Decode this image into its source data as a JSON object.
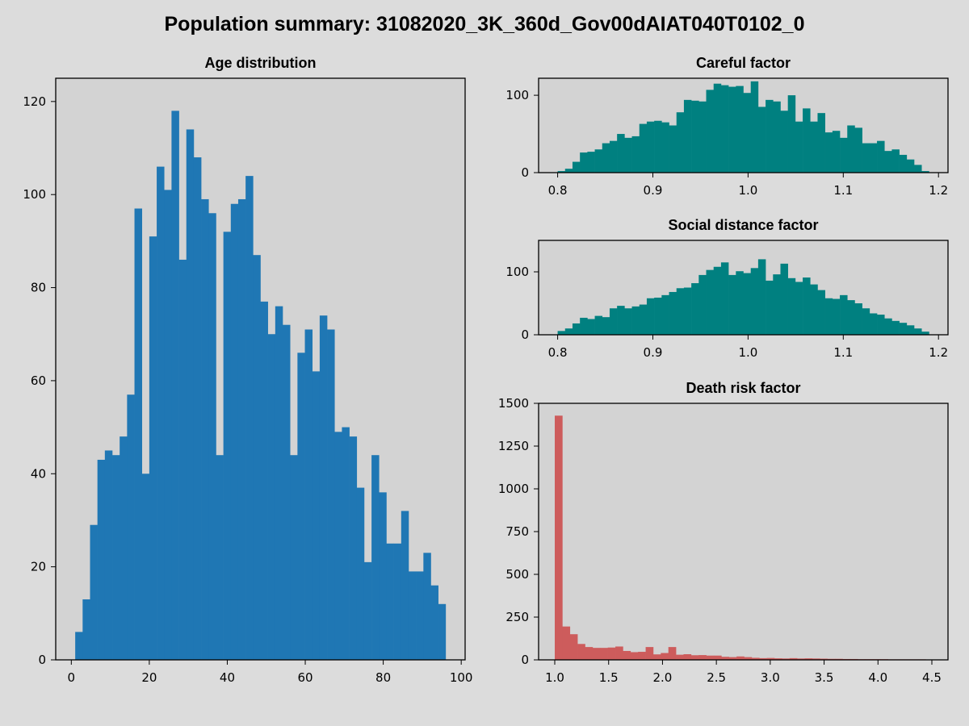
{
  "suptitle": "Population summary: 31082020_3K_360d_Gov00dAIAT040T0102_0",
  "colors": {
    "figure_bg": "#dcdcdc",
    "axes_bg": "#d3d3d3",
    "age": "#1f77b4",
    "careful": "#008080",
    "social": "#008080",
    "death": "#cd5c5c"
  },
  "chart_data": [
    {
      "id": "age",
      "type": "bar",
      "title": "Age distribution",
      "xlim": [
        -4,
        101
      ],
      "ylim": [
        0,
        125
      ],
      "xticks": [
        0,
        20,
        40,
        60,
        80,
        100
      ],
      "yticks": [
        0,
        20,
        40,
        60,
        80,
        100,
        120
      ],
      "ytick_labels": [
        "0",
        "20",
        "40",
        "60",
        "80",
        "100",
        "120"
      ],
      "bin_start": 1,
      "bin_width": 1.9,
      "values": [
        6,
        13,
        29,
        43,
        45,
        44,
        48,
        57,
        97,
        40,
        91,
        106,
        101,
        118,
        86,
        114,
        108,
        99,
        96,
        44,
        92,
        98,
        99,
        104,
        87,
        77,
        70,
        76,
        72,
        44,
        66,
        71,
        62,
        74,
        71,
        49,
        50,
        48,
        37,
        21,
        44,
        36,
        25,
        25,
        32,
        19,
        19,
        23,
        16,
        12
      ]
    },
    {
      "id": "careful",
      "type": "bar",
      "title": "Careful factor",
      "xlim": [
        0.78,
        1.21
      ],
      "ylim": [
        0,
        122
      ],
      "xticks": [
        0.8,
        0.9,
        1.0,
        1.1,
        1.2
      ],
      "xtick_labels": [
        "0.8",
        "0.9",
        "1.0",
        "1.1",
        "1.2"
      ],
      "yticks": [
        0,
        100
      ],
      "ytick_labels": [
        "0",
        "100"
      ],
      "bin_start": 0.8,
      "bin_width": 0.0078,
      "values": [
        2,
        5,
        14,
        26,
        27,
        30,
        38,
        41,
        50,
        45,
        47,
        63,
        66,
        67,
        65,
        61,
        78,
        94,
        93,
        92,
        107,
        115,
        113,
        111,
        112,
        103,
        118,
        85,
        94,
        92,
        80,
        100,
        66,
        83,
        66,
        77,
        52,
        54,
        45,
        61,
        58,
        38,
        38,
        41,
        28,
        30,
        23,
        17,
        10,
        2
      ]
    },
    {
      "id": "social",
      "type": "bar",
      "title": "Social distance factor",
      "xlim": [
        0.78,
        1.21
      ],
      "ylim": [
        0,
        150
      ],
      "xticks": [
        0.8,
        0.9,
        1.0,
        1.1,
        1.2
      ],
      "xtick_labels": [
        "0.8",
        "0.9",
        "1.0",
        "1.1",
        "1.2"
      ],
      "yticks": [
        0,
        100
      ],
      "ytick_labels": [
        "0",
        "100"
      ],
      "bin_start": 0.8,
      "bin_width": 0.0078,
      "values": [
        6,
        10,
        18,
        27,
        25,
        30,
        28,
        42,
        46,
        42,
        45,
        48,
        58,
        59,
        63,
        68,
        74,
        75,
        82,
        95,
        103,
        108,
        115,
        95,
        101,
        98,
        106,
        120,
        86,
        96,
        113,
        90,
        84,
        91,
        80,
        71,
        58,
        57,
        63,
        55,
        50,
        42,
        34,
        32,
        26,
        22,
        19,
        15,
        10,
        5
      ]
    },
    {
      "id": "death",
      "type": "bar",
      "title": "Death risk factor",
      "xlim": [
        0.85,
        4.65
      ],
      "ylim": [
        0,
        1500
      ],
      "xticks": [
        1.0,
        1.5,
        2.0,
        2.5,
        3.0,
        3.5,
        4.0,
        4.5
      ],
      "xtick_labels": [
        "1.0",
        "1.5",
        "2.0",
        "2.5",
        "3.0",
        "3.5",
        "4.0",
        "4.5"
      ],
      "yticks": [
        0,
        250,
        500,
        750,
        1000,
        1250,
        1500
      ],
      "ytick_labels": [
        "0",
        "250",
        "500",
        "750",
        "1000",
        "1250",
        "1500"
      ],
      "bin_start": 1.0,
      "bin_width": 0.0703,
      "values": [
        1428,
        195,
        150,
        93,
        75,
        70,
        70,
        72,
        78,
        52,
        45,
        47,
        75,
        32,
        40,
        75,
        30,
        33,
        27,
        28,
        25,
        25,
        18,
        16,
        20,
        16,
        12,
        10,
        11,
        9,
        8,
        10,
        8,
        9,
        8,
        7,
        6,
        6,
        5,
        5,
        4,
        4,
        4,
        4,
        3,
        3,
        3,
        3,
        3,
        2
      ]
    }
  ]
}
